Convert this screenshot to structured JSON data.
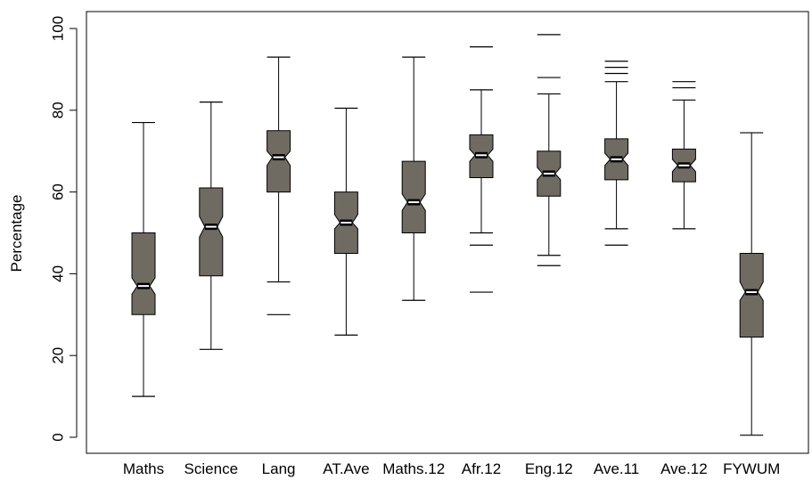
{
  "chart_data": {
    "type": "boxplot",
    "notched": true,
    "ylabel": "Percentage",
    "ylim": [
      0,
      100
    ],
    "yticks": [
      0,
      20,
      40,
      60,
      80,
      100
    ],
    "grid": false,
    "box_color": "#6f6b62",
    "categories": [
      "Maths",
      "Science",
      "Lang",
      "AT.Ave",
      "Maths.12",
      "Afr.12",
      "Eng.12",
      "Ave.11",
      "Ave.12",
      "FYWUM"
    ],
    "boxes": [
      {
        "name": "Maths",
        "whisker_low": 10,
        "q1": 30,
        "median": 37,
        "q3": 50,
        "whisker_high": 77,
        "notch_low": 35,
        "notch_high": 39,
        "outliers": []
      },
      {
        "name": "Science",
        "whisker_low": 21.5,
        "q1": 39.5,
        "median": 51.5,
        "q3": 61,
        "whisker_high": 82,
        "notch_low": 49,
        "notch_high": 54,
        "outliers": []
      },
      {
        "name": "Lang",
        "whisker_low": 38,
        "q1": 60,
        "median": 68.5,
        "q3": 75,
        "whisker_high": 93,
        "notch_low": 66.5,
        "notch_high": 70,
        "outliers": [
          30
        ]
      },
      {
        "name": "AT.Ave",
        "whisker_low": 25,
        "q1": 45,
        "median": 52.5,
        "q3": 60,
        "whisker_high": 80.5,
        "notch_low": 51,
        "notch_high": 54.5,
        "outliers": []
      },
      {
        "name": "Maths.12",
        "whisker_low": 33.5,
        "q1": 50,
        "median": 57.5,
        "q3": 67.5,
        "whisker_high": 93,
        "notch_low": 55.5,
        "notch_high": 59.5,
        "outliers": []
      },
      {
        "name": "Afr.12",
        "whisker_low": 50,
        "q1": 63.5,
        "median": 69,
        "q3": 74,
        "whisker_high": 85,
        "notch_low": 67.5,
        "notch_high": 70.5,
        "outliers": [
          47,
          35.5,
          95.5
        ]
      },
      {
        "name": "Eng.12",
        "whisker_low": 44.5,
        "q1": 59,
        "median": 64.5,
        "q3": 70,
        "whisker_high": 84,
        "notch_low": 63,
        "notch_high": 66,
        "outliers": [
          42,
          88,
          98.5
        ]
      },
      {
        "name": "Ave.11",
        "whisker_low": 51,
        "q1": 63,
        "median": 68,
        "q3": 73,
        "whisker_high": 87,
        "notch_low": 66.5,
        "notch_high": 69.5,
        "outliers": [
          47,
          89,
          90.5,
          92
        ]
      },
      {
        "name": "Ave.12",
        "whisker_low": 51,
        "q1": 62.5,
        "median": 66.5,
        "q3": 70.5,
        "whisker_high": 82.5,
        "notch_low": 65,
        "notch_high": 68,
        "outliers": [
          85.5,
          87
        ]
      },
      {
        "name": "FYWUM",
        "whisker_low": 0.5,
        "q1": 24.5,
        "median": 35.5,
        "q3": 45,
        "whisker_high": 74.5,
        "notch_low": 33.5,
        "notch_high": 38,
        "outliers": []
      }
    ]
  }
}
